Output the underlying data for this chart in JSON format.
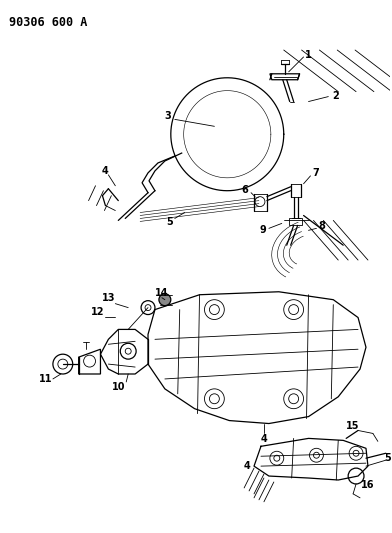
{
  "title": "90306 600 A",
  "bg": "#ffffff",
  "lc": "#000000",
  "fig_w": 3.92,
  "fig_h": 5.33,
  "dpi": 100
}
